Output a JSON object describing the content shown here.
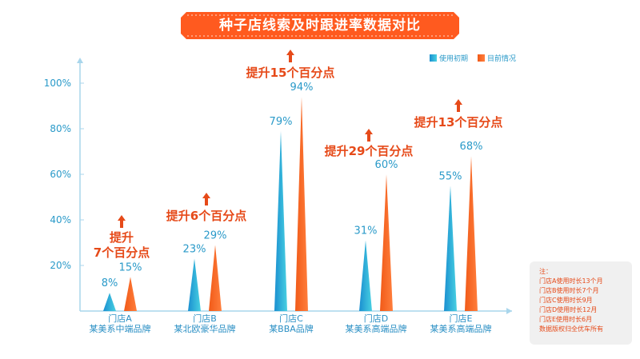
{
  "title": "种子店线索及时跟进率数据对比",
  "colors": {
    "banner": "#ff5a1f",
    "initial_dark": "#1a8fd0",
    "initial_light": "#48d0e2",
    "current_dark": "#f15a18",
    "current_light": "#ff7e3c",
    "axis": "#a9d6ec",
    "tick_text": "#2a9ac9",
    "category_text": "#2a8fc4",
    "value_text": "#2a9ac9",
    "annotation": "#e64a19"
  },
  "chart_data": {
    "type": "bar",
    "categories": [
      "门店A",
      "门店B",
      "门店C",
      "门店D",
      "门店E"
    ],
    "category_sublabels": [
      "某美系中端品牌",
      "某北欧豪华品牌",
      "某BBA品牌",
      "某美系高端品牌",
      "某美系高端品牌"
    ],
    "series": [
      {
        "name": "使用初期",
        "values": [
          8,
          23,
          79,
          31,
          55
        ],
        "labels": [
          "8%",
          "23%",
          "79%",
          "31%",
          "55%"
        ]
      },
      {
        "name": "目前情况",
        "values": [
          15,
          29,
          94,
          60,
          68
        ],
        "labels": [
          "15%",
          "29%",
          "94%",
          "60%",
          "68%"
        ]
      }
    ],
    "ylim": [
      0,
      100
    ],
    "y_ticks": [
      20,
      40,
      60,
      80,
      100
    ],
    "y_tick_labels": [
      "20%",
      "40%",
      "60%",
      "80%",
      "100%"
    ],
    "legend_position": "top-right",
    "annotations": [
      {
        "lines": [
          "提升",
          "7个百分点"
        ]
      },
      {
        "lines": [
          "提升6个百分点"
        ]
      },
      {
        "lines": [
          "提升15个百分点"
        ]
      },
      {
        "lines": [
          "提升29个百分点"
        ]
      },
      {
        "lines": [
          "提升13个百分点"
        ]
      }
    ]
  },
  "note": {
    "lines": [
      "注：",
      "门店A使用时长13个月",
      "门店B使用时长7个月",
      "门店C使用时长9月",
      "门店D使用时长12月",
      "门店E使用时长6月",
      "数据版权归全优车所有"
    ]
  }
}
